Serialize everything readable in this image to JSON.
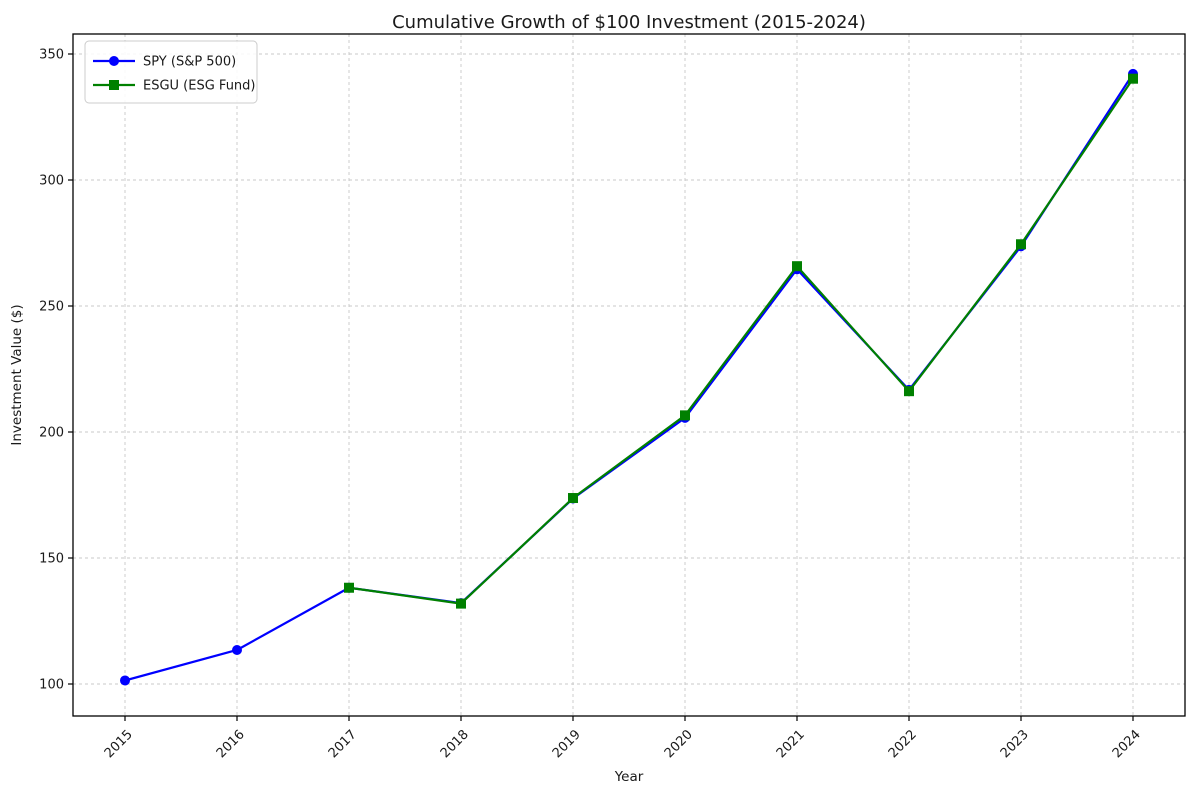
{
  "chart_data": {
    "type": "line",
    "title": "Cumulative Growth of $100 Investment (2015-2024)",
    "xlabel": "Year",
    "ylabel": "Investment Value ($)",
    "categories": [
      "2015",
      "2016",
      "2017",
      "2018",
      "2019",
      "2020",
      "2021",
      "2022",
      "2023",
      "2024"
    ],
    "y_ticks": [
      100,
      150,
      200,
      250,
      300,
      350
    ],
    "ylim": [
      87,
      358
    ],
    "grid": true,
    "grid_style": "dashed",
    "legend_position": "upper-left",
    "colors": {
      "grid": "#c8c8c8",
      "spine": "#000000",
      "text": "#1a1a1a",
      "legend_border": "#cccccc",
      "legend_background": "rgba(255,255,255,0.85)"
    },
    "series": [
      {
        "name": "SPY (S&P 500)",
        "color": "#0000ff",
        "marker": "circle",
        "values": [
          101.4,
          113.5,
          138.2,
          132.1,
          173.6,
          205.6,
          264.6,
          216.7,
          273.7,
          342.1
        ]
      },
      {
        "name": "ESGU (ESG Fund)",
        "color": "#008000",
        "marker": "square",
        "values": [
          null,
          null,
          138.2,
          131.9,
          173.8,
          206.6,
          265.8,
          216.2,
          274.5,
          340.2
        ]
      }
    ]
  }
}
